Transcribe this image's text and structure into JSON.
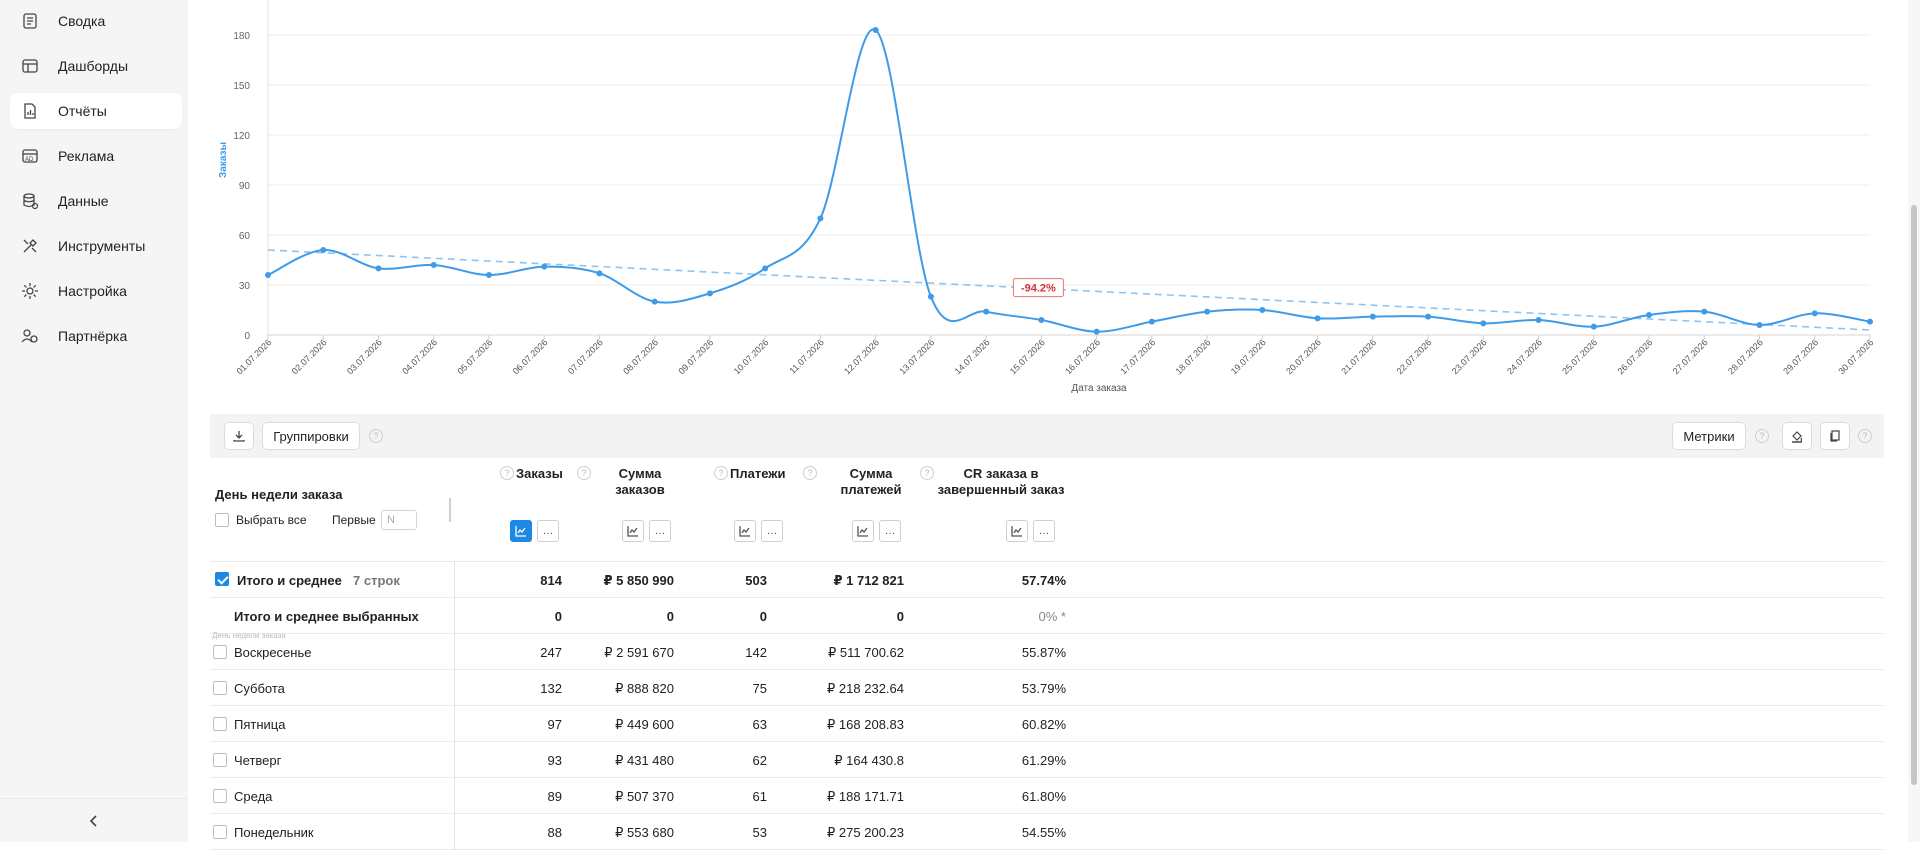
{
  "sidebar": {
    "items": [
      {
        "label": "Сводка",
        "icon": "summary-icon"
      },
      {
        "label": "Дашборды",
        "icon": "dashboard-icon"
      },
      {
        "label": "Отчёты",
        "icon": "reports-icon",
        "active": true
      },
      {
        "label": "Реклама",
        "icon": "ads-icon"
      },
      {
        "label": "Данные",
        "icon": "database-icon"
      },
      {
        "label": "Инструменты",
        "icon": "tools-icon"
      },
      {
        "label": "Настройка",
        "icon": "gear-icon"
      },
      {
        "label": "Партнёрка",
        "icon": "partners-icon"
      }
    ],
    "collapse_icon": "chevron-left-icon"
  },
  "chart_data": {
    "type": "line",
    "ylabel": "Заказы",
    "xlabel": "Дата заказа",
    "ylim": [
      0,
      195
    ],
    "yticks": [
      0,
      30,
      60,
      90,
      120,
      150,
      180
    ],
    "categories": [
      "01.07.2026",
      "02.07.2026",
      "03.07.2026",
      "04.07.2026",
      "05.07.2026",
      "06.07.2026",
      "07.07.2026",
      "08.07.2026",
      "09.07.2026",
      "10.07.2026",
      "11.07.2026",
      "12.07.2026",
      "13.07.2026",
      "14.07.2026",
      "15.07.2026",
      "16.07.2026",
      "17.07.2026",
      "18.07.2026",
      "19.07.2026",
      "20.07.2026",
      "21.07.2026",
      "22.07.2026",
      "23.07.2026",
      "24.07.2026",
      "25.07.2026",
      "26.07.2026",
      "27.07.2026",
      "28.07.2026",
      "29.07.2026",
      "30.07.2026"
    ],
    "series": [
      {
        "values": [
          36,
          51,
          40,
          42,
          36,
          41,
          37,
          20,
          25,
          40,
          70,
          183,
          23,
          14,
          9,
          2,
          8,
          14,
          15,
          10,
          11,
          11,
          7,
          9,
          5,
          12,
          14,
          6,
          13,
          8
        ],
        "color": "#3d9be9"
      }
    ],
    "trend": {
      "start": 51,
      "end": 3,
      "color": "#8ec4f2",
      "label": "-94.2%",
      "label_color": "#d32f2f"
    },
    "grid": true
  },
  "toolbar": {
    "download_icon": "download-icon",
    "groupings_label": "Группировки",
    "metrics_label": "Метрики",
    "fill_icon": "paint-bucket-icon",
    "copy_icon": "copy-icon"
  },
  "table": {
    "group_header": "День недели заказа",
    "select_all": "Выбрать все",
    "first_label": "Первые",
    "first_placeholder": "N",
    "small_group_label": "День недели заказа",
    "columns": [
      {
        "label": "Заказы"
      },
      {
        "label": "Сумма заказов"
      },
      {
        "label": "Платежи"
      },
      {
        "label": "Сумма платежей"
      },
      {
        "label": "CR заказа в завершенный заказ"
      }
    ],
    "total": {
      "label": "Итого и среднее",
      "rows_count": "7 строк",
      "values": [
        "814",
        "₽ 5 850 990",
        "503",
        "₽ 1 712 821",
        "57.74%"
      ]
    },
    "selected_total": {
      "label": "Итого и среднее выбранных",
      "values": [
        "0",
        "0",
        "0",
        "0",
        "0% *"
      ]
    },
    "rows": [
      {
        "name": "Воскресенье",
        "values": [
          "247",
          "₽ 2 591 670",
          "142",
          "₽ 511 700.62",
          "55.87%"
        ]
      },
      {
        "name": "Суббота",
        "values": [
          "132",
          "₽ 888 820",
          "75",
          "₽ 218 232.64",
          "53.79%"
        ]
      },
      {
        "name": "Пятница",
        "values": [
          "97",
          "₽ 449 600",
          "63",
          "₽ 168 208.83",
          "60.82%"
        ]
      },
      {
        "name": "Четверг",
        "values": [
          "93",
          "₽ 431 480",
          "62",
          "₽ 164 430.8",
          "61.29%"
        ]
      },
      {
        "name": "Среда",
        "values": [
          "89",
          "₽ 507 370",
          "61",
          "₽ 188 171.71",
          "61.80%"
        ]
      },
      {
        "name": "Понедельник",
        "values": [
          "88",
          "₽ 553 680",
          "53",
          "₽ 275 200.23",
          "54.55%"
        ]
      }
    ]
  }
}
